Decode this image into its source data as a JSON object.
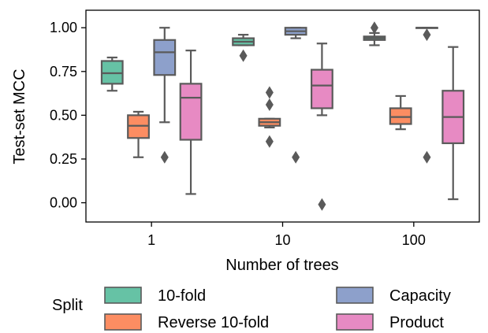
{
  "chart_data": {
    "type": "box",
    "xlabel": "Number of trees",
    "ylabel": "Test-set MCC",
    "categories": [
      "1",
      "10",
      "100"
    ],
    "ylim": [
      -0.11,
      1.1
    ],
    "yticks": [
      0.0,
      0.25,
      0.5,
      0.75,
      1.0
    ],
    "ytick_labels": [
      "0.00",
      "0.25",
      "0.50",
      "0.75",
      "1.00"
    ],
    "grid": false,
    "legend": {
      "title": "Split",
      "placement": "bottom-center",
      "columns": 2
    },
    "series": [
      {
        "name": "10-fold",
        "color": "#66c2a5",
        "boxes": [
          {
            "whisker_low": 0.64,
            "q1": 0.68,
            "median": 0.74,
            "q3": 0.81,
            "whisker_high": 0.83,
            "outliers": []
          },
          {
            "whisker_low": 0.9,
            "q1": 0.9,
            "median": 0.92,
            "q3": 0.94,
            "whisker_high": 0.96,
            "outliers": [
              0.84
            ]
          },
          {
            "whisker_low": 0.9,
            "q1": 0.93,
            "median": 0.94,
            "q3": 0.95,
            "whisker_high": 0.97,
            "outliers": [
              1.0
            ]
          }
        ]
      },
      {
        "name": "Reverse 10-fold",
        "color": "#fc8d62",
        "boxes": [
          {
            "whisker_low": 0.26,
            "q1": 0.37,
            "median": 0.44,
            "q3": 0.5,
            "whisker_high": 0.52,
            "outliers": []
          },
          {
            "whisker_low": 0.43,
            "q1": 0.44,
            "median": 0.46,
            "q3": 0.48,
            "whisker_high": 0.48,
            "outliers": [
              0.63,
              0.56,
              0.35
            ]
          },
          {
            "whisker_low": 0.42,
            "q1": 0.45,
            "median": 0.49,
            "q3": 0.54,
            "whisker_high": 0.61,
            "outliers": []
          }
        ]
      },
      {
        "name": "Capacity",
        "color": "#8da0cb",
        "boxes": [
          {
            "whisker_low": 0.46,
            "q1": 0.73,
            "median": 0.86,
            "q3": 0.93,
            "whisker_high": 1.0,
            "outliers": [
              0.26
            ]
          },
          {
            "whisker_low": 0.94,
            "q1": 0.96,
            "median": 0.98,
            "q3": 1.0,
            "whisker_high": 1.0,
            "outliers": [
              0.26
            ]
          },
          {
            "whisker_low": 1.0,
            "q1": 1.0,
            "median": 1.0,
            "q3": 1.0,
            "whisker_high": 1.0,
            "outliers": [
              0.96,
              0.26
            ]
          }
        ]
      },
      {
        "name": "Product",
        "color": "#e78ac3",
        "boxes": [
          {
            "whisker_low": 0.05,
            "q1": 0.36,
            "median": 0.6,
            "q3": 0.68,
            "whisker_high": 0.87,
            "outliers": []
          },
          {
            "whisker_low": 0.5,
            "q1": 0.54,
            "median": 0.67,
            "q3": 0.76,
            "whisker_high": 0.91,
            "outliers": [
              -0.01
            ]
          },
          {
            "whisker_low": 0.02,
            "q1": 0.34,
            "median": 0.49,
            "q3": 0.64,
            "whisker_high": 0.89,
            "outliers": []
          }
        ]
      }
    ]
  }
}
